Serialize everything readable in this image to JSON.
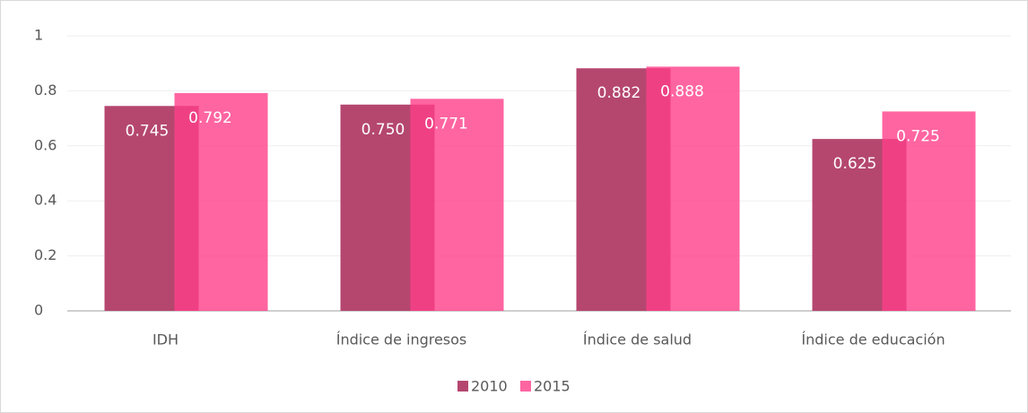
{
  "chart_data": {
    "type": "bar",
    "categories": [
      "IDH",
      "Índice de ingresos",
      "Índice de salud",
      "Índice de educación"
    ],
    "series": [
      {
        "name": "2010",
        "color": "#b5476f",
        "values": [
          0.745,
          0.75,
          0.882,
          0.625
        ],
        "value_labels": [
          "0.745",
          "0.750",
          "0.882",
          "0.625"
        ]
      },
      {
        "name": "2015",
        "color": "#ff3f8a",
        "values": [
          0.792,
          0.771,
          0.888,
          0.725
        ],
        "value_labels": [
          "0.792",
          "0.771",
          "0.888",
          "0.725"
        ]
      }
    ],
    "ylim": [
      0,
      1
    ],
    "yticks": [
      0,
      0.2,
      0.4,
      0.6,
      0.8,
      1
    ],
    "grid": true,
    "legend": "bottom"
  }
}
